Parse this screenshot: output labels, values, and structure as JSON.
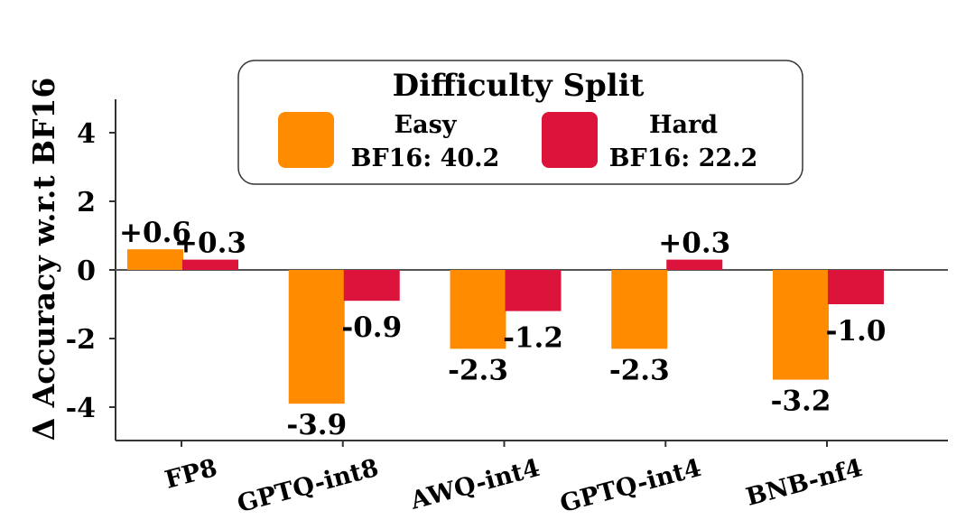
{
  "chart_data": {
    "type": "bar",
    "title": "",
    "xlabel": "",
    "ylabel": "Δ Accuracy w.r.t BF16",
    "ylim": [
      -5,
      5
    ],
    "yticks": [
      4,
      2,
      0,
      -2,
      -4
    ],
    "ytick_labels": [
      "4",
      "2",
      "0",
      "-2",
      "-4"
    ],
    "categories": [
      "FP8",
      "GPTQ-int8",
      "AWQ-int4",
      "GPTQ-int4",
      "BNB-nf4"
    ],
    "series": [
      {
        "name": "Easy",
        "subtitle": "BF16: 40.2",
        "color": "#FF8C00",
        "values": [
          0.6,
          -3.9,
          -2.3,
          -2.3,
          -3.2
        ],
        "labels": [
          "+0.6",
          "-3.9",
          "-2.3",
          "-2.3",
          "-3.2"
        ]
      },
      {
        "name": "Hard",
        "subtitle": "BF16: 22.2",
        "color": "#DC143C",
        "values": [
          0.3,
          -0.9,
          -1.2,
          0.3,
          -1.0
        ],
        "labels": [
          "+0.3",
          "-0.9",
          "-1.2",
          "+0.3",
          "-1.0"
        ]
      }
    ],
    "legend": {
      "title": "Difficulty Split",
      "location": "top-center"
    }
  }
}
